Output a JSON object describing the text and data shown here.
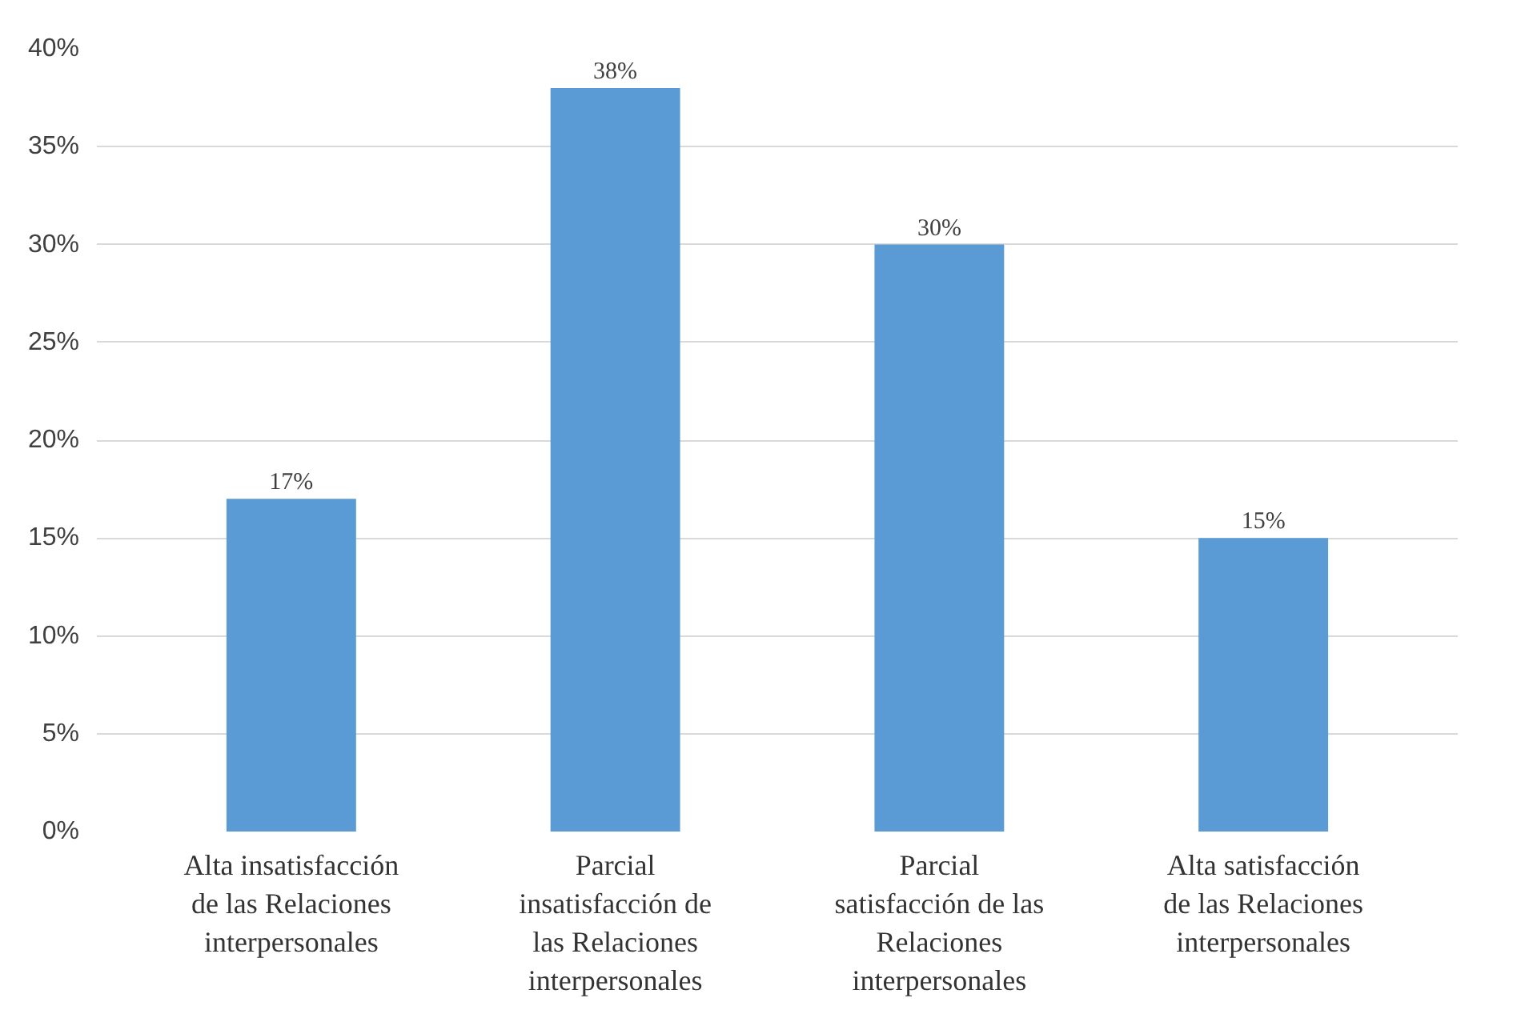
{
  "chart_data": {
    "type": "bar",
    "categories": [
      "Alta insatisfacción de las Relaciones interpersonales",
      "Parcial insatisfacción de las Relaciones interpersonales",
      "Parcial satisfacción de las Relaciones interpersonales",
      "Alta satisfacción de las Relaciones interpersonales"
    ],
    "values": [
      17,
      38,
      30,
      15
    ],
    "color": "#5b9bd5",
    "value_labels": [
      "17%",
      "38%",
      "30%",
      "15%"
    ],
    "ylim": [
      0,
      40
    ],
    "yticks": [
      {
        "value": 0,
        "label": "0%"
      },
      {
        "value": 5,
        "label": "5%"
      },
      {
        "value": 10,
        "label": "10%"
      },
      {
        "value": 15,
        "label": "15%"
      },
      {
        "value": 20,
        "label": "20%"
      },
      {
        "value": 25,
        "label": "25%"
      },
      {
        "value": 30,
        "label": "30%"
      },
      {
        "value": 35,
        "label": "35%"
      },
      {
        "value": 40,
        "label": "40%"
      }
    ],
    "grid": "y"
  }
}
